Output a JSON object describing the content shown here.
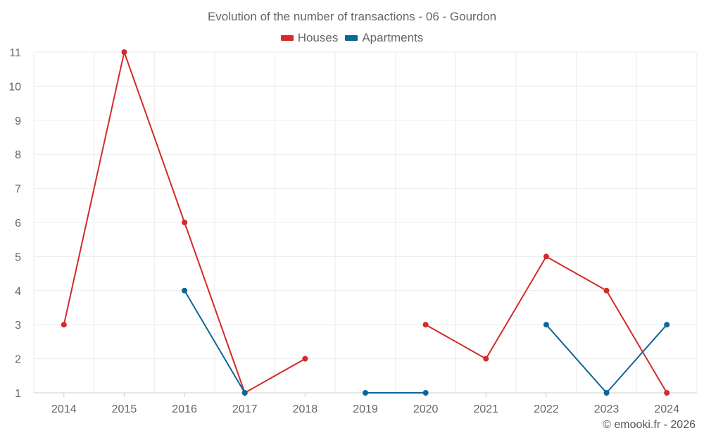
{
  "chart_data": {
    "type": "line",
    "title": "Evolution of the number of transactions - 06 - Gourdon",
    "categories": [
      "2014",
      "2015",
      "2016",
      "2017",
      "2018",
      "2019",
      "2020",
      "2021",
      "2022",
      "2023",
      "2024"
    ],
    "ylim": [
      1,
      11
    ],
    "yticks": [
      "1",
      "2",
      "3",
      "4",
      "5",
      "6",
      "7",
      "8",
      "9",
      "10",
      "11"
    ],
    "grid": true,
    "legend_position": "top-center",
    "series": [
      {
        "name": "Houses",
        "color": "#d42a2a",
        "values": [
          3,
          11,
          6,
          1,
          2,
          null,
          3,
          2,
          5,
          4,
          1
        ]
      },
      {
        "name": "Apartments",
        "color": "#0d6699",
        "values": [
          null,
          null,
          4,
          1,
          null,
          1,
          1,
          null,
          3,
          1,
          3
        ]
      }
    ]
  },
  "credit": "© emooki.fr - 2026"
}
